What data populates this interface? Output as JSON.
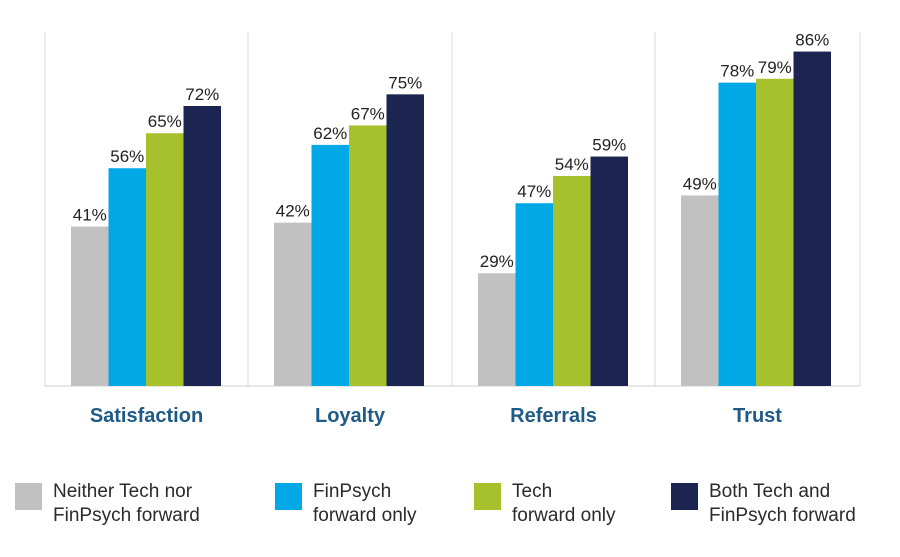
{
  "chart_data": {
    "type": "bar",
    "title": "",
    "xlabel": "",
    "ylabel": "",
    "ylim": [
      0,
      100
    ],
    "grid": false,
    "legend_position": "bottom",
    "categories": [
      "Satisfaction",
      "Loyalty",
      "Referrals",
      "Trust"
    ],
    "series": [
      {
        "name": "Neither Tech nor FinPsych forward",
        "name_lines": [
          "Neither Tech nor",
          "FinPsych forward"
        ],
        "color": "#c1c1c1",
        "values": [
          41,
          42,
          29,
          49
        ]
      },
      {
        "name": "FinPsych forward only",
        "name_lines": [
          "FinPsych",
          "forward only"
        ],
        "color": "#00a9e6",
        "values": [
          56,
          62,
          47,
          78
        ]
      },
      {
        "name": "Tech forward only",
        "name_lines": [
          "Tech",
          "forward only"
        ],
        "color": "#a6c12b",
        "values": [
          65,
          67,
          54,
          79
        ]
      },
      {
        "name": "Both Tech and FinPsych forward",
        "name_lines": [
          "Both Tech and",
          "FinPsych forward"
        ],
        "color": "#1c2551",
        "values": [
          72,
          75,
          59,
          86
        ]
      }
    ],
    "value_suffix": "%",
    "category_label_color": "#1e5a86"
  }
}
